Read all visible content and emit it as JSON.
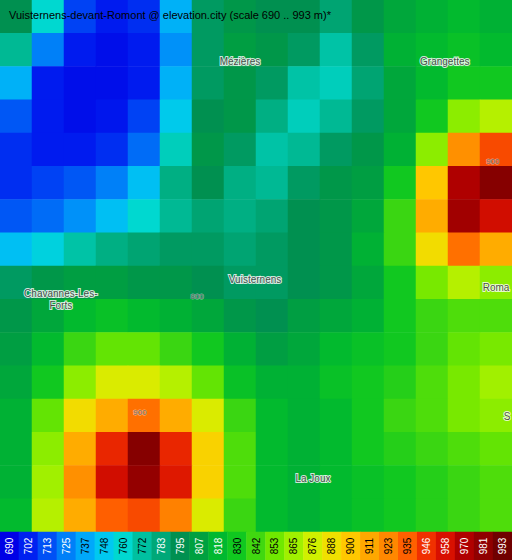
{
  "chart_data": {
    "type": "heatmap",
    "title": "Vuisternens-devant-Romont @ elevation.city (scale 690 .. 993 m)*",
    "xlim": [
      0,
      16
    ],
    "ylim": [
      0,
      16
    ],
    "tick_labels": false,
    "elevation": [
      [
        795,
        760,
        710,
        700,
        705,
        740,
        790,
        800,
        795,
        795,
        785,
        800,
        810,
        815,
        820,
        815
      ],
      [
        775,
        725,
        700,
        695,
        700,
        730,
        790,
        805,
        800,
        790,
        770,
        790,
        815,
        820,
        825,
        820
      ],
      [
        740,
        700,
        695,
        695,
        700,
        740,
        790,
        800,
        790,
        770,
        765,
        785,
        810,
        820,
        830,
        830
      ],
      [
        715,
        700,
        695,
        698,
        710,
        750,
        795,
        800,
        780,
        765,
        775,
        790,
        810,
        830,
        860,
        870
      ],
      [
        705,
        700,
        700,
        705,
        720,
        765,
        800,
        790,
        770,
        775,
        790,
        800,
        815,
        860,
        920,
        940
      ],
      [
        705,
        710,
        715,
        725,
        745,
        780,
        795,
        780,
        775,
        790,
        800,
        805,
        830,
        900,
        970,
        985
      ],
      [
        715,
        720,
        730,
        745,
        760,
        775,
        785,
        780,
        785,
        795,
        800,
        810,
        840,
        910,
        975,
        960
      ],
      [
        745,
        755,
        770,
        780,
        785,
        790,
        790,
        785,
        790,
        795,
        800,
        815,
        840,
        890,
        930,
        910
      ],
      [
        790,
        800,
        805,
        805,
        800,
        800,
        795,
        790,
        790,
        795,
        800,
        810,
        830,
        855,
        870,
        860
      ],
      [
        800,
        810,
        820,
        825,
        820,
        815,
        810,
        800,
        795,
        805,
        810,
        815,
        830,
        840,
        845,
        845
      ],
      [
        805,
        820,
        840,
        850,
        850,
        840,
        830,
        815,
        805,
        810,
        820,
        825,
        830,
        840,
        850,
        855
      ],
      [
        810,
        830,
        860,
        880,
        880,
        870,
        850,
        825,
        815,
        815,
        825,
        830,
        835,
        845,
        855,
        865
      ],
      [
        815,
        850,
        890,
        910,
        930,
        910,
        880,
        840,
        820,
        815,
        820,
        830,
        840,
        845,
        855,
        860
      ],
      [
        815,
        860,
        910,
        950,
        985,
        950,
        895,
        845,
        820,
        815,
        820,
        830,
        835,
        840,
        845,
        850
      ],
      [
        815,
        865,
        920,
        960,
        980,
        955,
        895,
        845,
        820,
        815,
        820,
        825,
        830,
        835,
        840,
        845
      ],
      [
        820,
        870,
        910,
        935,
        940,
        925,
        880,
        840,
        820,
        815,
        820,
        825,
        830,
        835,
        840,
        845
      ]
    ],
    "colorbar": {
      "range": [
        690,
        993
      ],
      "ticks": [
        690,
        702,
        713,
        725,
        737,
        748,
        760,
        772,
        783,
        795,
        807,
        818,
        830,
        842,
        853,
        865,
        876,
        888,
        900,
        911,
        923,
        935,
        946,
        958,
        970,
        981,
        993
      ]
    },
    "colors": [
      "#0000e6",
      "#0020f0",
      "#0050f5",
      "#0080f8",
      "#00a8fa",
      "#00c8f0",
      "#00d8d0",
      "#00c0a0",
      "#00a878",
      "#009050",
      "#00a040",
      "#00b830",
      "#10c820",
      "#40d810",
      "#70e800",
      "#a0f000",
      "#d0f000",
      "#f0e000",
      "#ffc800",
      "#ffa800",
      "#ff8800",
      "#ff6000",
      "#f03000",
      "#d81000",
      "#b00000",
      "#900000",
      "#700000"
    ],
    "places": [
      {
        "label": "Mézières",
        "x": 7.5,
        "y": 1.86
      },
      {
        "label": "Grangettes",
        "x": 13.9,
        "y": 1.86
      },
      {
        "label": "Vuisternens",
        "x": 7.97,
        "y": 8.42
      },
      {
        "label": "Chavannes-Les-\nForts",
        "x": 1.9,
        "y": 9.0
      },
      {
        "label": "Roma",
        "x": 15.5,
        "y": 8.66
      },
      {
        "label": "La Joux",
        "x": 9.78,
        "y": 14.4
      },
      {
        "label": "S",
        "x": 15.85,
        "y": 12.54
      }
    ],
    "contour_labels": [
      {
        "value": 900,
        "x": 15.4,
        "y": 4.87
      },
      {
        "value": 900,
        "x": 4.375,
        "y": 12.42
      },
      {
        "value": 800,
        "x": 6.16,
        "y": 8.93
      }
    ]
  }
}
